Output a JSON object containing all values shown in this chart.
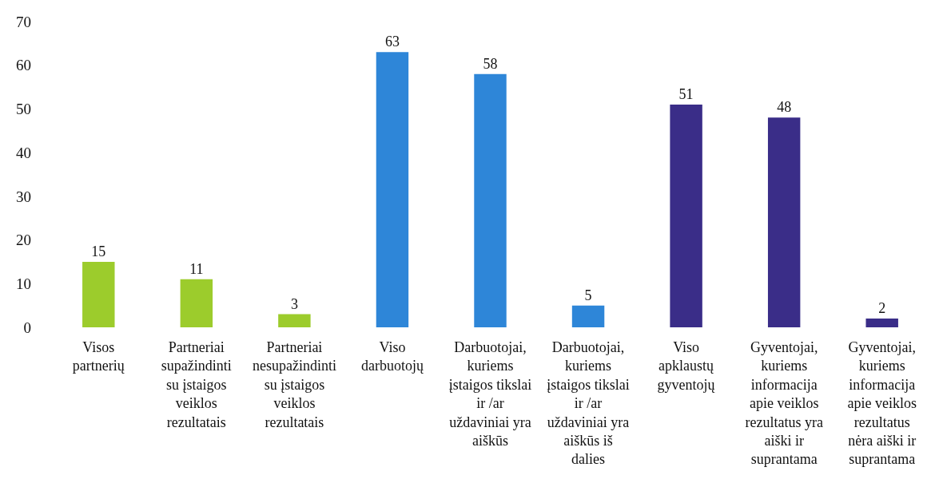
{
  "chart_data": {
    "type": "bar",
    "categories": [
      "Visos\npartnerių",
      "Partneriai\nsupažindinti\nsu įstaigos\nveiklos\nrezultatais",
      "Partneriai\nnesupažindinti\nsu įstaigos\nveiklos\nrezultatais",
      "Viso\ndarbuotojų",
      "Darbuotojai,\nkuriems\nįstaigos tikslai\nir /ar\nuždaviniai yra\naiškūs",
      "Darbuotojai,\nkuriems\nįstaigos tikslai\nir /ar\nuždaviniai yra\naiškūs iš\ndalies",
      "Viso\napklaustų\ngyventojų",
      "Gyventojai,\nkuriems\ninformacija\napie veiklos\nrezultatus yra\naiški ir\nsuprantama",
      "Gyventojai,\nkuriems\ninformacija\napie veiklos\nrezultatus\nnėra aiški ir\nsuprantama"
    ],
    "values": [
      15,
      11,
      3,
      63,
      58,
      5,
      51,
      48,
      2
    ],
    "colors": [
      "#9ccc2c",
      "#9ccc2c",
      "#9ccc2c",
      "#2e86d8",
      "#2e86d8",
      "#2e86d8",
      "#3a2d88",
      "#3a2d88",
      "#3a2d88"
    ],
    "ylim": [
      0,
      70
    ],
    "yticks": [
      0,
      10,
      20,
      30,
      40,
      50,
      60,
      70
    ],
    "data_labels": true,
    "grid": false
  }
}
